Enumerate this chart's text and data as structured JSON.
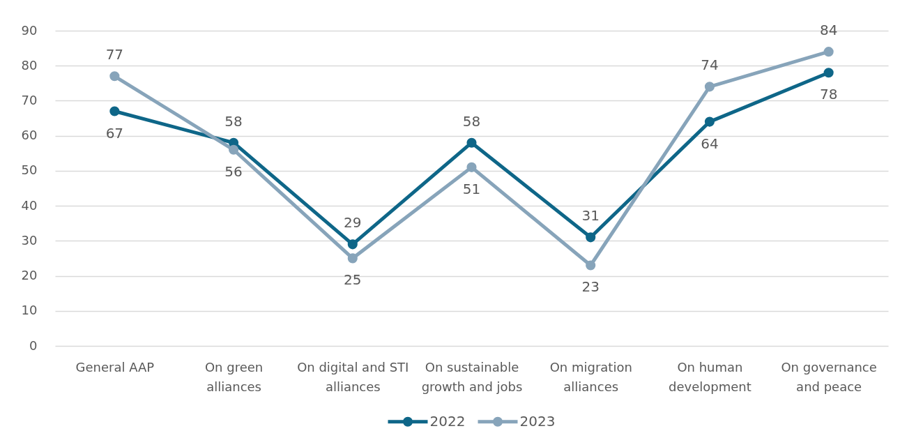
{
  "chart_data": {
    "type": "line",
    "categories": [
      "General AAP",
      "On green\nalliances",
      "On digital and STI\nalliances",
      "On sustainable\ngrowth and jobs",
      "On migration\nalliances",
      "On human\ndevelopment",
      "On governance\nand peace"
    ],
    "series": [
      {
        "name": "2022",
        "color": "#0e6688",
        "values": [
          67,
          58,
          29,
          58,
          31,
          64,
          78
        ]
      },
      {
        "name": "2023",
        "color": "#87a4ba",
        "values": [
          77,
          56,
          25,
          51,
          23,
          74,
          84
        ]
      }
    ],
    "ylim": [
      0,
      90
    ],
    "yticks": [
      0,
      10,
      20,
      30,
      40,
      50,
      60,
      70,
      80,
      90
    ],
    "grid": "y",
    "legend": "bottom",
    "marker": "circle",
    "line_style": "solid",
    "data_labels": true
  }
}
